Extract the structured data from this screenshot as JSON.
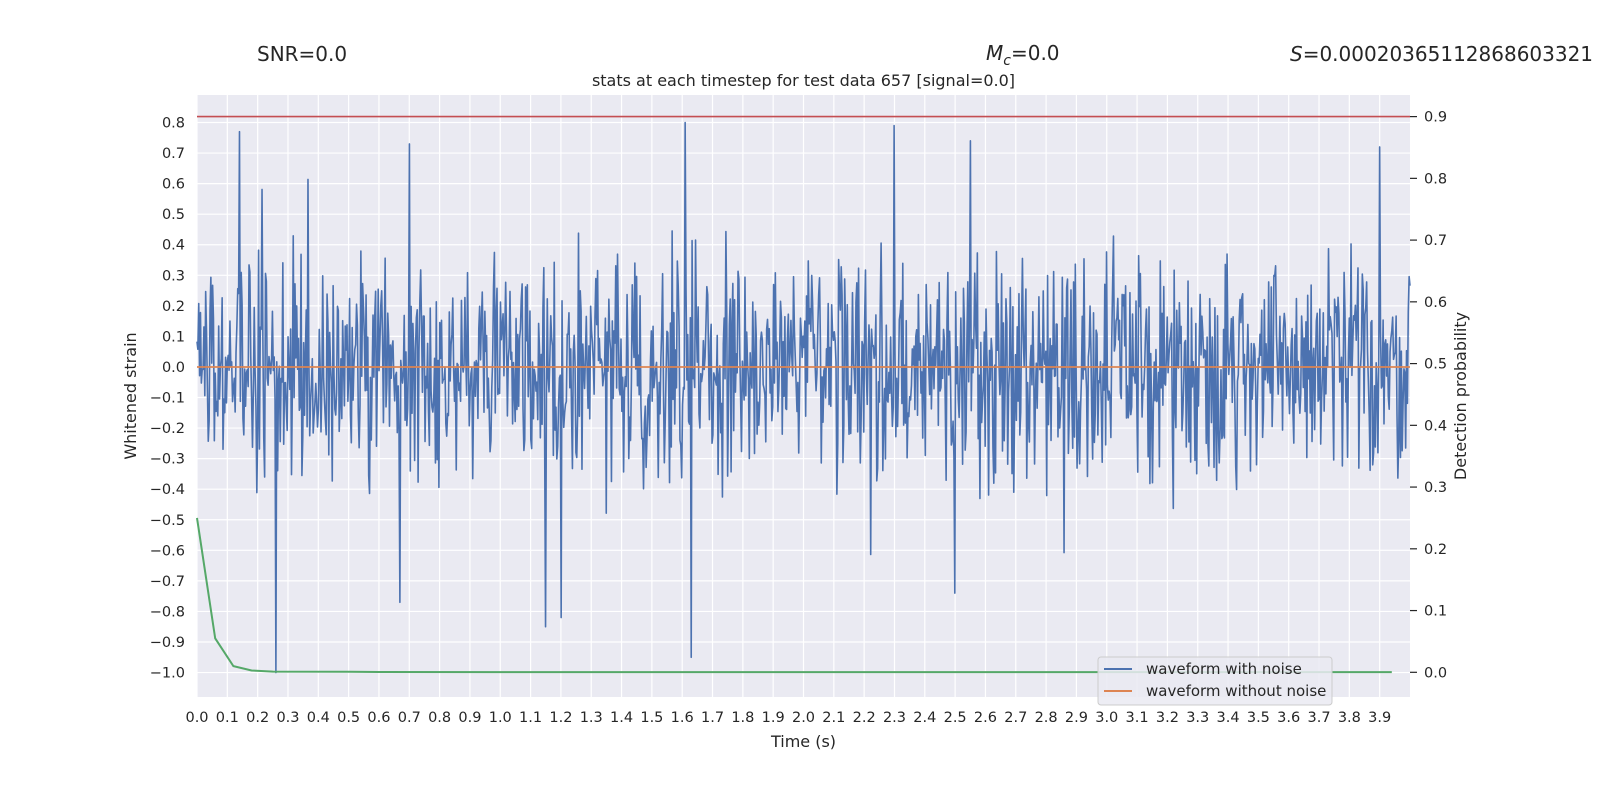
{
  "chart_data": {
    "type": "line",
    "title": "stats at each timestep for test data 657 [signal=0.0]",
    "header": {
      "snr_label": "SNR=0.0",
      "mc_symbol": "M",
      "mc_subscript": "c",
      "mc_value": "=0.0",
      "s_symbol": "S",
      "s_value": "=0.00020365112868603321"
    },
    "xlabel": "Time (s)",
    "ylabel_left": "Whitened strain",
    "ylabel_right": "Detection probability",
    "xlim": [
      0.0,
      4.0
    ],
    "ylim_left": [
      -1.08,
      0.89
    ],
    "ylim_right": [
      -0.04,
      0.935
    ],
    "x_ticks": [
      "0.0",
      "0.1",
      "0.2",
      "0.3",
      "0.4",
      "0.5",
      "0.6",
      "0.7",
      "0.8",
      "0.9",
      "1.0",
      "1.1",
      "1.2",
      "1.3",
      "1.4",
      "1.5",
      "1.6",
      "1.7",
      "1.8",
      "1.9",
      "2.0",
      "2.1",
      "2.2",
      "2.3",
      "2.4",
      "2.5",
      "2.6",
      "2.7",
      "2.8",
      "2.9",
      "3.0",
      "3.1",
      "3.2",
      "3.3",
      "3.4",
      "3.5",
      "3.6",
      "3.7",
      "3.8",
      "3.9"
    ],
    "y_ticks_left": [
      "0.8",
      "0.7",
      "0.6",
      "0.5",
      "0.4",
      "0.3",
      "0.2",
      "0.1",
      "0.0",
      "−0.1",
      "−0.2",
      "−0.3",
      "−0.4",
      "−0.5",
      "−0.6",
      "−0.7",
      "−0.8",
      "−0.9",
      "−1.0"
    ],
    "y_ticks_right": [
      "0.9",
      "0.8",
      "0.7",
      "0.6",
      "0.5",
      "0.4",
      "0.3",
      "0.2",
      "0.1",
      "0.0"
    ],
    "threshold_value": 0.9,
    "series": [
      {
        "name": "waveform with noise",
        "color": "#4c72b0",
        "axis": "left",
        "description": "dense noise trace",
        "x_start": 0.0,
        "x_end": 4.0,
        "sample_count": 1400,
        "typical_range": [
          -0.45,
          0.45
        ],
        "seed": 657,
        "spikes": [
          {
            "x": 0.14,
            "y": 0.77
          },
          {
            "x": 0.26,
            "y": -1.0
          },
          {
            "x": 0.7,
            "y": 0.73
          },
          {
            "x": 1.15,
            "y": -0.85
          },
          {
            "x": 1.2,
            "y": -0.82
          },
          {
            "x": 1.61,
            "y": 0.8
          },
          {
            "x": 1.63,
            "y": -0.95
          },
          {
            "x": 2.3,
            "y": 0.79
          },
          {
            "x": 2.5,
            "y": -0.74
          },
          {
            "x": 2.55,
            "y": 0.74
          },
          {
            "x": 3.9,
            "y": 0.72
          },
          {
            "x": 0.67,
            "y": -0.77
          }
        ]
      },
      {
        "name": "waveform without noise",
        "color": "#dd8452",
        "axis": "left",
        "x": [
          0.0,
          4.0
        ],
        "y": [
          0.0,
          0.0
        ]
      },
      {
        "name": "detection probability",
        "color": "#55a868",
        "axis": "right",
        "x": [
          0.0,
          0.06,
          0.12,
          0.18,
          0.25,
          0.5,
          0.6,
          1.0,
          2.0,
          3.0,
          3.94
        ],
        "y": [
          0.25,
          0.055,
          0.01,
          0.003,
          0.001,
          0.0008,
          0.0004,
          0.0003,
          0.0002,
          0.0002,
          0.0002
        ]
      }
    ],
    "legend": {
      "position": "lower-right",
      "entries": [
        {
          "label": "waveform with noise",
          "color": "#4c72b0"
        },
        {
          "label": "waveform without noise",
          "color": "#dd8452"
        }
      ]
    },
    "colors": {
      "background": "#eaeaf2",
      "grid": "#ffffff",
      "threshold": "#c44e52"
    }
  }
}
